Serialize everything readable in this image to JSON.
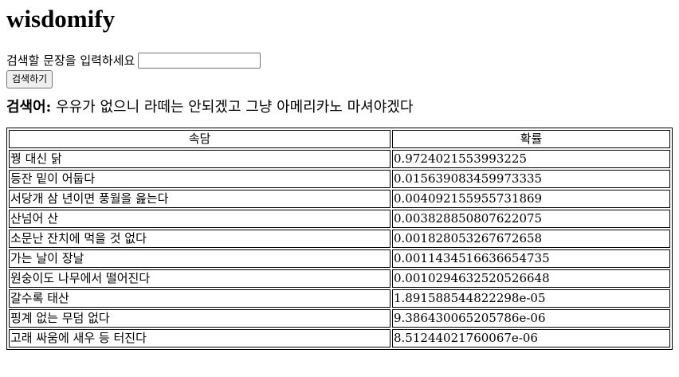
{
  "app_title": "wisdomify",
  "search": {
    "label": "검색할 문장을 입력하세요",
    "input_value": "",
    "button_label": "검색하기"
  },
  "query": {
    "label": "검색어:",
    "text": "우유가 없으니 라떼는 안되겠고 그냥 아메리카노 마셔야겠다"
  },
  "table": {
    "headers": [
      "속담",
      "확률"
    ],
    "rows": [
      {
        "proverb": "꿩 대신 닭",
        "prob": "0.9724021553993225"
      },
      {
        "proverb": "등잔 밑이 어둡다",
        "prob": "0.015639083459973335"
      },
      {
        "proverb": "서당개 삼 년이면 풍월을 읊는다",
        "prob": "0.004092155955731869"
      },
      {
        "proverb": "산넘어 산",
        "prob": "0.003828850807622075"
      },
      {
        "proverb": "소문난 잔치에 먹을 것 없다",
        "prob": "0.001828053267672658"
      },
      {
        "proverb": "가는 날이 장날",
        "prob": "0.0011434516636654735"
      },
      {
        "proverb": "원숭이도 나무에서 떨어진다",
        "prob": "0.0010294632520526648"
      },
      {
        "proverb": "갈수록 태산",
        "prob": "1.891588544822298e-05"
      },
      {
        "proverb": "핑계 없는 무덤 없다",
        "prob": "9.386430065205786e-06"
      },
      {
        "proverb": "고래 싸움에 새우 등 터진다",
        "prob": "8.51244021760067e-06"
      }
    ]
  }
}
